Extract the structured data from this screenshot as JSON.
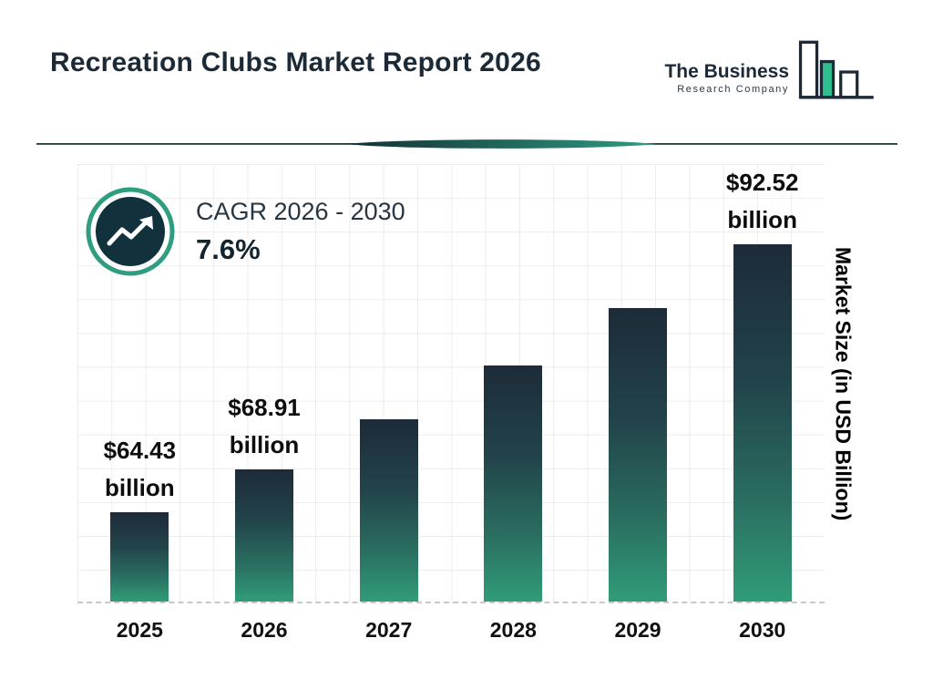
{
  "header": {
    "title": "Recreation Clubs Market Report 2026",
    "logo": {
      "line1": "The Business",
      "line2": "Research Company"
    }
  },
  "cagr": {
    "label": "CAGR 2026 - 2030",
    "value": "7.6%"
  },
  "chart_data": {
    "type": "bar",
    "title": "Recreation Clubs Market Report 2026",
    "categories": [
      "2025",
      "2026",
      "2027",
      "2028",
      "2029",
      "2030"
    ],
    "values": [
      64.43,
      68.91,
      74.15,
      79.79,
      85.85,
      92.52
    ],
    "value_labels": [
      {
        "amount": "$64.43",
        "unit": "billion"
      },
      {
        "amount": "$68.91",
        "unit": "billion"
      },
      null,
      null,
      null,
      {
        "amount": "$92.52",
        "unit": "billion"
      }
    ],
    "xlabel": "",
    "ylabel": "Market Size (in USD Billion)",
    "cagr_annotation": "CAGR 2026 - 2030: 7.6%",
    "ylim": [
      55,
      101
    ],
    "grid": true,
    "legend": false,
    "bar_gradient": [
      "#1d2b38",
      "#309c79"
    ]
  },
  "colors": {
    "title_navy": "#1c2a37",
    "teal_accent": "#2f9d80",
    "badge_fill": "#11313c",
    "grid_line": "#ececec"
  }
}
